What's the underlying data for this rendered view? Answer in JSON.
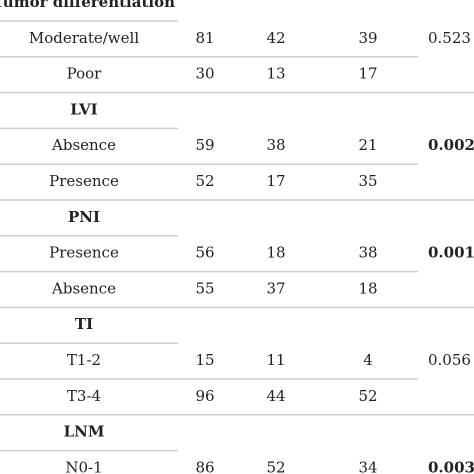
{
  "table": {
    "sections": [
      {
        "title": "Tumor differentiation",
        "p_value": "0.523",
        "significant": false,
        "rows": [
          {
            "label": "Moderate/well",
            "values": [
              81,
              42,
              39
            ]
          },
          {
            "label": "Poor",
            "values": [
              30,
              13,
              17
            ]
          }
        ]
      },
      {
        "title": "LVI",
        "p_value": "0.002",
        "significant": true,
        "rows": [
          {
            "label": "Absence",
            "values": [
              59,
              38,
              21
            ]
          },
          {
            "label": "Presence",
            "values": [
              52,
              17,
              35
            ]
          }
        ]
      },
      {
        "title": "PNI",
        "p_value": "0.001",
        "significant": true,
        "rows": [
          {
            "label": "Presence",
            "values": [
              56,
              18,
              38
            ]
          },
          {
            "label": "Absence",
            "values": [
              55,
              37,
              18
            ]
          }
        ]
      },
      {
        "title": "TI",
        "p_value": "0.056",
        "significant": false,
        "rows": [
          {
            "label": "T1-2",
            "values": [
              15,
              11,
              4
            ]
          },
          {
            "label": "T3-4",
            "values": [
              96,
              44,
              52
            ]
          }
        ]
      },
      {
        "title": "LNM",
        "p_value": "0.003",
        "significant": true,
        "rows": [
          {
            "label": "N0-1",
            "values": [
              86,
              52,
              34
            ]
          }
        ]
      }
    ]
  }
}
